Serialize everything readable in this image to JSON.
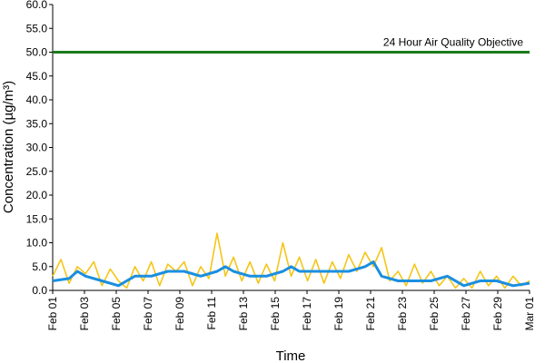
{
  "chart_data": {
    "type": "line",
    "title": "",
    "xlabel": "Time",
    "ylabel": "Concentration (µg/m³)",
    "ylim": [
      0,
      60
    ],
    "y_ticks": [
      "0.0",
      "5.0",
      "10.0",
      "15.0",
      "20.0",
      "25.0",
      "30.0",
      "35.0",
      "40.0",
      "45.0",
      "50.0",
      "55.0",
      "60.0"
    ],
    "x_range": [
      "2016-02-01",
      "2016-03-01"
    ],
    "x_tick_labels": [
      "Feb 01",
      "Feb 03",
      "Feb 05",
      "Feb 07",
      "Feb 09",
      "Feb 11",
      "Feb 13",
      "Feb 15",
      "Feb 17",
      "Feb 19",
      "Feb 21",
      "Feb 23",
      "Feb 25",
      "Feb 27",
      "Feb 29",
      "Mar 01"
    ],
    "grid": false,
    "objective": {
      "label": "24 Hour Air Quality Objective",
      "value": 50,
      "color": "#1a7a1a"
    },
    "series": [
      {
        "color": "#f5c518",
        "x": [
          "2016-02-01",
          "2016-02-01T12",
          "2016-02-02",
          "2016-02-02T12",
          "2016-02-03",
          "2016-02-03T12",
          "2016-02-04",
          "2016-02-04T12",
          "2016-02-05",
          "2016-02-05T12",
          "2016-02-06",
          "2016-02-06T12",
          "2016-02-07",
          "2016-02-07T12",
          "2016-02-08",
          "2016-02-08T12",
          "2016-02-09",
          "2016-02-09T12",
          "2016-02-10",
          "2016-02-10T12",
          "2016-02-11",
          "2016-02-11T12",
          "2016-02-12",
          "2016-02-12T12",
          "2016-02-13",
          "2016-02-13T12",
          "2016-02-14",
          "2016-02-14T12",
          "2016-02-15",
          "2016-02-15T12",
          "2016-02-16",
          "2016-02-16T12",
          "2016-02-17",
          "2016-02-17T12",
          "2016-02-18",
          "2016-02-18T12",
          "2016-02-19",
          "2016-02-19T12",
          "2016-02-20",
          "2016-02-20T12",
          "2016-02-21",
          "2016-02-21T12",
          "2016-02-22",
          "2016-02-22T12",
          "2016-02-23",
          "2016-02-23T12",
          "2016-02-24",
          "2016-02-24T12",
          "2016-02-25",
          "2016-02-25T12",
          "2016-02-26",
          "2016-02-26T12",
          "2016-02-27",
          "2016-02-27T12",
          "2016-02-28",
          "2016-02-28T12",
          "2016-02-29",
          "2016-02-29T12",
          "2016-03-01"
        ],
        "y": [
          3.0,
          6.5,
          1.5,
          5.0,
          3.5,
          6.0,
          1.0,
          4.5,
          2.0,
          0.5,
          5.0,
          2.0,
          6.0,
          1.0,
          5.5,
          4.0,
          6.0,
          1.0,
          5.0,
          2.5,
          12.0,
          3.0,
          7.0,
          2.0,
          6.0,
          1.5,
          5.5,
          2.0,
          10.0,
          3.0,
          7.0,
          2.0,
          6.5,
          1.5,
          6.0,
          2.5,
          7.5,
          4.0,
          8.0,
          5.0,
          9.0,
          2.0,
          4.0,
          1.0,
          5.5,
          1.5,
          4.0,
          1.0,
          3.0,
          0.5,
          2.5,
          0.5,
          4.0,
          1.0,
          3.0,
          0.5,
          3.0,
          1.0,
          2.0
        ]
      },
      {
        "color": "#1a8fe0",
        "x": [
          "2016-02-01",
          "2016-02-02",
          "2016-02-02T12",
          "2016-02-03",
          "2016-02-04",
          "2016-02-05",
          "2016-02-05T12",
          "2016-02-06",
          "2016-02-07",
          "2016-02-08",
          "2016-02-09",
          "2016-02-10",
          "2016-02-11",
          "2016-02-11T12",
          "2016-02-12",
          "2016-02-13",
          "2016-02-14",
          "2016-02-15",
          "2016-02-15T12",
          "2016-02-16",
          "2016-02-17",
          "2016-02-18",
          "2016-02-19",
          "2016-02-20",
          "2016-02-20T12",
          "2016-02-21",
          "2016-02-22",
          "2016-02-23",
          "2016-02-24",
          "2016-02-25",
          "2016-02-26",
          "2016-02-27",
          "2016-02-28",
          "2016-02-29",
          "2016-03-01"
        ],
        "y": [
          2.0,
          2.5,
          4.0,
          3.0,
          2.0,
          1.0,
          2.0,
          3.0,
          3.0,
          4.0,
          4.0,
          3.0,
          4.0,
          5.0,
          4.0,
          3.0,
          3.0,
          4.0,
          5.0,
          4.0,
          4.0,
          4.0,
          4.0,
          5.0,
          6.0,
          3.0,
          2.0,
          2.0,
          2.0,
          3.0,
          1.0,
          2.0,
          2.0,
          1.0,
          1.5
        ]
      }
    ]
  }
}
